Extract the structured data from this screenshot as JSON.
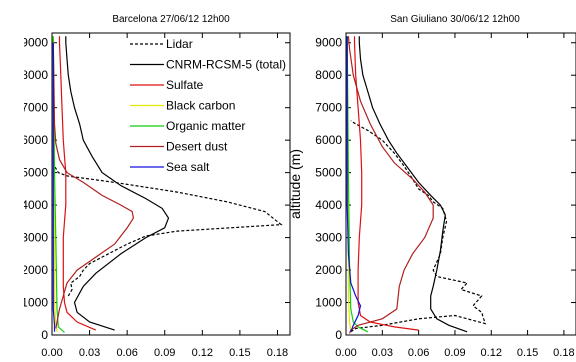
{
  "chart_data": [
    {
      "type": "line",
      "title": "Barcelona 27/06/12 12h00",
      "xlabel": "",
      "ylabel": "",
      "xlim": [
        0,
        0.19
      ],
      "ylim": [
        0,
        9300
      ],
      "xticks": [
        "0.00",
        "0.03",
        "0.06",
        "0.09",
        "0.12",
        "0.15",
        "0.18"
      ],
      "yticks": [
        "0",
        "1000",
        "2000",
        "3000",
        "4000",
        "5000",
        "6000",
        "7000",
        "8000",
        "9000"
      ],
      "ytick_labels_clipped": [
        "0",
        "1000",
        "2000",
        "3000",
        "4000",
        "5000",
        "6000",
        "7000",
        "8000",
        "9000"
      ],
      "legend": {
        "position": "top-right",
        "entries": [
          {
            "label": "Lidar",
            "color": "#000000",
            "dashed": true
          },
          {
            "label": "CNRM-RCSM-5 (total)",
            "color": "#000000",
            "dashed": false
          },
          {
            "label": "Sulfate",
            "color": "#dd1111",
            "dashed": false
          },
          {
            "label": "Black carbon",
            "color": "#e8e800",
            "dashed": false
          },
          {
            "label": "Organic matter",
            "color": "#11cc11",
            "dashed": false
          },
          {
            "label": "Desert dust",
            "color": "#b02020",
            "dashed": false
          },
          {
            "label": "Sea salt",
            "color": "#1111dd",
            "dashed": false
          }
        ]
      },
      "series": [
        {
          "name": "Lidar",
          "color": "#000000",
          "dashed": true,
          "points": [
            [
              0.013,
              1200
            ],
            [
              0.016,
              1400
            ],
            [
              0.015,
              1600
            ],
            [
              0.022,
              1800
            ],
            [
              0.025,
              2000
            ],
            [
              0.03,
              2200
            ],
            [
              0.04,
              2400
            ],
            [
              0.05,
              2600
            ],
            [
              0.06,
              2800
            ],
            [
              0.075,
              3050
            ],
            [
              0.1,
              3200
            ],
            [
              0.183,
              3400
            ],
            [
              0.17,
              3800
            ],
            [
              0.14,
              4100
            ],
            [
              0.1,
              4400
            ],
            [
              0.05,
              4700
            ],
            [
              0.012,
              4900
            ],
            [
              0.005,
              5000
            ],
            [
              0.002,
              5200
            ]
          ]
        },
        {
          "name": "CNRM-RCSM-5 (total)",
          "color": "#000000",
          "dashed": false,
          "points": [
            [
              0.05,
              150
            ],
            [
              0.03,
              400
            ],
            [
              0.02,
              700
            ],
            [
              0.018,
              1000
            ],
            [
              0.025,
              1500
            ],
            [
              0.035,
              1900
            ],
            [
              0.055,
              2500
            ],
            [
              0.075,
              3000
            ],
            [
              0.09,
              3300
            ],
            [
              0.093,
              3600
            ],
            [
              0.088,
              3900
            ],
            [
              0.075,
              4200
            ],
            [
              0.055,
              4600
            ],
            [
              0.04,
              5000
            ],
            [
              0.032,
              5500
            ],
            [
              0.025,
              6000
            ],
            [
              0.022,
              6500
            ],
            [
              0.018,
              7000
            ],
            [
              0.015,
              7500
            ],
            [
              0.013,
              8000
            ],
            [
              0.012,
              8500
            ],
            [
              0.011,
              9000
            ],
            [
              0.011,
              9200
            ]
          ]
        },
        {
          "name": "Sulfate",
          "color": "#dd1111",
          "dashed": false,
          "points": [
            [
              0.035,
              150
            ],
            [
              0.02,
              400
            ],
            [
              0.012,
              700
            ],
            [
              0.01,
              1000
            ],
            [
              0.009,
              1500
            ],
            [
              0.009,
              2000
            ],
            [
              0.009,
              2500
            ],
            [
              0.009,
              3000
            ],
            [
              0.01,
              3500
            ],
            [
              0.011,
              4000
            ],
            [
              0.011,
              4500
            ],
            [
              0.011,
              5000
            ],
            [
              0.01,
              5500
            ],
            [
              0.009,
              6000
            ],
            [
              0.008,
              7000
            ],
            [
              0.007,
              8000
            ],
            [
              0.006,
              9000
            ],
            [
              0.006,
              9200
            ]
          ]
        },
        {
          "name": "Black carbon",
          "color": "#e8e800",
          "dashed": false,
          "points": [
            [
              0.004,
              100
            ],
            [
              0.003,
              300
            ],
            [
              0.002,
              1000
            ],
            [
              0.002,
              3000
            ],
            [
              0.001,
              5000
            ],
            [
              0.001,
              9000
            ],
            [
              0.001,
              9200
            ]
          ]
        },
        {
          "name": "Organic matter",
          "color": "#11cc11",
          "dashed": false,
          "points": [
            [
              0.01,
              80
            ],
            [
              0.005,
              250
            ],
            [
              0.004,
              800
            ],
            [
              0.003,
              3000
            ],
            [
              0.002,
              5000
            ],
            [
              0.001,
              9000
            ],
            [
              0.001,
              9200
            ]
          ]
        },
        {
          "name": "Desert dust",
          "color": "#b02020",
          "dashed": false,
          "points": [
            [
              0.003,
              200
            ],
            [
              0.006,
              800
            ],
            [
              0.012,
              1600
            ],
            [
              0.02,
              2000
            ],
            [
              0.035,
              2400
            ],
            [
              0.05,
              2800
            ],
            [
              0.06,
              3300
            ],
            [
              0.065,
              3600
            ],
            [
              0.064,
              3800
            ],
            [
              0.055,
              4000
            ],
            [
              0.04,
              4300
            ],
            [
              0.025,
              4700
            ],
            [
              0.012,
              5000
            ],
            [
              0.006,
              5400
            ],
            [
              0.003,
              5900
            ],
            [
              0.002,
              6500
            ],
            [
              0.001,
              9000
            ]
          ]
        },
        {
          "name": "Sea salt",
          "color": "#1111dd",
          "dashed": false,
          "points": [
            [
              0.002,
              100
            ],
            [
              0.002,
              300
            ],
            [
              0.001,
              800
            ],
            [
              0.001,
              9000
            ]
          ]
        }
      ]
    },
    {
      "type": "line",
      "title": "San Giuliano 30/06/12 12h00",
      "xlabel": "",
      "ylabel": "altitude (m)",
      "xlim": [
        0,
        0.19
      ],
      "ylim": [
        0,
        9300
      ],
      "xticks": [
        "0.00",
        "0.03",
        "0.06",
        "0.09",
        "0.12",
        "0.15",
        "0.18"
      ],
      "yticks": [
        "0",
        "1000",
        "2000",
        "3000",
        "4000",
        "5000",
        "6000",
        "7000",
        "8000",
        "9000"
      ],
      "series": [
        {
          "name": "Lidar",
          "color": "#000000",
          "dashed": true,
          "points": [
            [
              0.004,
              100
            ],
            [
              0.008,
              200
            ],
            [
              0.03,
              300
            ],
            [
              0.06,
              500
            ],
            [
              0.09,
              600
            ],
            [
              0.115,
              350
            ],
            [
              0.112,
              700
            ],
            [
              0.105,
              900
            ],
            [
              0.112,
              1200
            ],
            [
              0.095,
              1400
            ],
            [
              0.1,
              1600
            ],
            [
              0.075,
              1800
            ],
            [
              0.072,
              2000
            ],
            [
              0.078,
              2500
            ],
            [
              0.08,
              3000
            ],
            [
              0.083,
              3500
            ],
            [
              0.08,
              3900
            ],
            [
              0.072,
              4100
            ],
            [
              0.068,
              4300
            ],
            [
              0.06,
              4500
            ],
            [
              0.055,
              4800
            ],
            [
              0.048,
              5200
            ],
            [
              0.04,
              5600
            ],
            [
              0.03,
              6000
            ],
            [
              0.018,
              6300
            ],
            [
              0.008,
              6500
            ],
            [
              0.004,
              6600
            ]
          ]
        },
        {
          "name": "CNRM-RCSM-5 (total)",
          "color": "#000000",
          "dashed": false,
          "points": [
            [
              0.1,
              100
            ],
            [
              0.085,
              300
            ],
            [
              0.075,
              500
            ],
            [
              0.07,
              800
            ],
            [
              0.07,
              1200
            ],
            [
              0.072,
              1500
            ],
            [
              0.075,
              2000
            ],
            [
              0.078,
              2600
            ],
            [
              0.08,
              3200
            ],
            [
              0.082,
              3700
            ],
            [
              0.078,
              4000
            ],
            [
              0.07,
              4300
            ],
            [
              0.06,
              4700
            ],
            [
              0.05,
              5200
            ],
            [
              0.042,
              5600
            ],
            [
              0.035,
              6000
            ],
            [
              0.028,
              6500
            ],
            [
              0.022,
              7000
            ],
            [
              0.018,
              7500
            ],
            [
              0.014,
              8000
            ],
            [
              0.012,
              8500
            ],
            [
              0.011,
              9000
            ],
            [
              0.011,
              9200
            ]
          ]
        },
        {
          "name": "Sulfate",
          "color": "#dd1111",
          "dashed": false,
          "points": [
            [
              0.06,
              150
            ],
            [
              0.04,
              250
            ],
            [
              0.02,
              400
            ],
            [
              0.012,
              600
            ],
            [
              0.01,
              1000
            ],
            [
              0.01,
              2000
            ],
            [
              0.011,
              3000
            ],
            [
              0.013,
              4000
            ],
            [
              0.013,
              5000
            ],
            [
              0.012,
              6000
            ],
            [
              0.01,
              7000
            ],
            [
              0.008,
              8000
            ],
            [
              0.007,
              9000
            ],
            [
              0.007,
              9200
            ]
          ]
        },
        {
          "name": "Black carbon",
          "color": "#e8e800",
          "dashed": false,
          "points": [
            [
              0.004,
              100
            ],
            [
              0.003,
              400
            ],
            [
              0.002,
              1200
            ],
            [
              0.002,
              3000
            ],
            [
              0.001,
              6000
            ],
            [
              0.001,
              9200
            ]
          ]
        },
        {
          "name": "Organic matter",
          "color": "#11cc11",
          "dashed": false,
          "points": [
            [
              0.018,
              100
            ],
            [
              0.01,
              250
            ],
            [
              0.006,
              400
            ],
            [
              0.004,
              800
            ],
            [
              0.003,
              2000
            ],
            [
              0.002,
              5000
            ],
            [
              0.001,
              9200
            ]
          ]
        },
        {
          "name": "Desert dust",
          "color": "#b02020",
          "dashed": false,
          "points": [
            [
              0.003,
              50
            ],
            [
              0.004,
              150
            ],
            [
              0.01,
              300
            ],
            [
              0.03,
              500
            ],
            [
              0.042,
              800
            ],
            [
              0.044,
              1500
            ],
            [
              0.048,
              2000
            ],
            [
              0.055,
              2500
            ],
            [
              0.065,
              3000
            ],
            [
              0.072,
              3600
            ],
            [
              0.072,
              4000
            ],
            [
              0.065,
              4400
            ],
            [
              0.055,
              4800
            ],
            [
              0.04,
              5300
            ],
            [
              0.03,
              5800
            ],
            [
              0.02,
              6500
            ],
            [
              0.012,
              7200
            ],
            [
              0.006,
              8000
            ],
            [
              0.003,
              8800
            ],
            [
              0.002,
              9200
            ]
          ]
        },
        {
          "name": "Sea salt",
          "color": "#1111dd",
          "dashed": false,
          "points": [
            [
              0.004,
              100
            ],
            [
              0.006,
              300
            ],
            [
              0.01,
              600
            ],
            [
              0.012,
              900
            ],
            [
              0.008,
              1200
            ],
            [
              0.004,
              1600
            ],
            [
              0.002,
              2500
            ],
            [
              0.001,
              4000
            ],
            [
              0.001,
              9200
            ]
          ]
        }
      ]
    }
  ]
}
